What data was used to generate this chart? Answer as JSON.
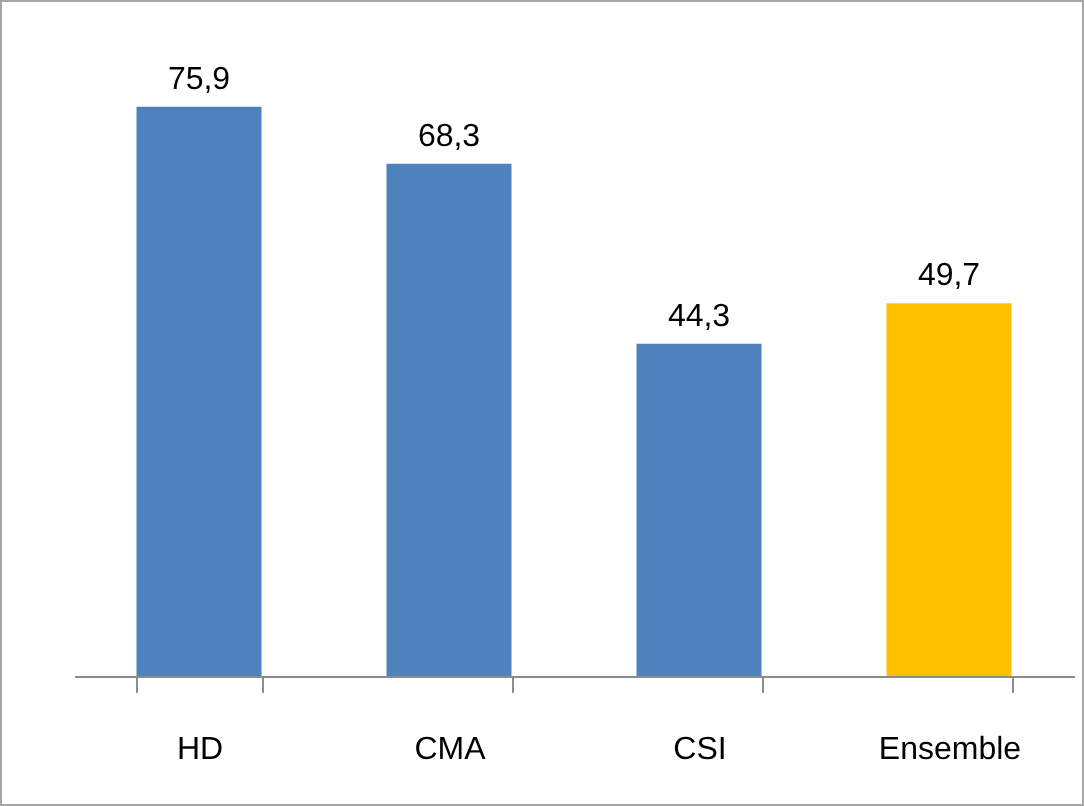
{
  "chart_data": {
    "type": "bar",
    "categories": [
      "HD",
      "CMA",
      "CSI",
      "Ensemble"
    ],
    "values": [
      75.9,
      68.3,
      44.3,
      49.7
    ],
    "colors": [
      "#4f81bd",
      "#4f81bd",
      "#4f81bd",
      "#ffc000"
    ],
    "value_labels": [
      "75,9",
      "68,3",
      "44,3",
      "49,7"
    ]
  }
}
